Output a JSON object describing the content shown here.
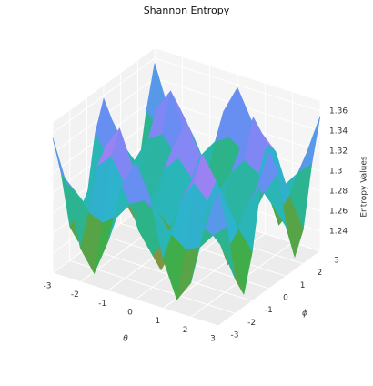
{
  "chart_data": {
    "type": "surface",
    "title": "Shannon Entropy",
    "xlabel": "θ",
    "ylabel": "ϕ",
    "zlabel": "Entropy Values",
    "x": [
      -3,
      -2.5,
      -2,
      -1.5,
      -1,
      -0.5,
      0,
      0.5,
      1,
      1.5,
      2,
      2.5,
      3
    ],
    "y": [
      -3,
      -2.5,
      -2,
      -1.5,
      -1,
      -0.5,
      0,
      0.5,
      1,
      1.5,
      2,
      2.5,
      3
    ],
    "z": [
      [
        1.355,
        1.313,
        1.254,
        1.233,
        1.269,
        1.329,
        1.357,
        1.329,
        1.269,
        1.233,
        1.254,
        1.313,
        1.355
      ],
      [
        1.313,
        1.3,
        1.283,
        1.277,
        1.287,
        1.305,
        1.313,
        1.305,
        1.287,
        1.277,
        1.283,
        1.3,
        1.313
      ],
      [
        1.254,
        1.283,
        1.323,
        1.337,
        1.313,
        1.272,
        1.252,
        1.272,
        1.313,
        1.337,
        1.323,
        1.283,
        1.254
      ],
      [
        1.233,
        1.277,
        1.337,
        1.359,
        1.322,
        1.26,
        1.231,
        1.26,
        1.322,
        1.359,
        1.337,
        1.277,
        1.233
      ],
      [
        1.269,
        1.287,
        1.313,
        1.322,
        1.306,
        1.28,
        1.268,
        1.28,
        1.306,
        1.322,
        1.313,
        1.287,
        1.269
      ],
      [
        1.329,
        1.305,
        1.272,
        1.26,
        1.28,
        1.314,
        1.33,
        1.314,
        1.28,
        1.26,
        1.272,
        1.305,
        1.329
      ],
      [
        1.357,
        1.313,
        1.252,
        1.231,
        1.268,
        1.33,
        1.36,
        1.33,
        1.268,
        1.231,
        1.252,
        1.313,
        1.357
      ],
      [
        1.329,
        1.305,
        1.272,
        1.26,
        1.28,
        1.314,
        1.33,
        1.314,
        1.28,
        1.26,
        1.272,
        1.305,
        1.329
      ],
      [
        1.269,
        1.287,
        1.313,
        1.322,
        1.306,
        1.28,
        1.268,
        1.28,
        1.306,
        1.322,
        1.313,
        1.287,
        1.269
      ],
      [
        1.233,
        1.277,
        1.337,
        1.359,
        1.322,
        1.26,
        1.231,
        1.26,
        1.322,
        1.359,
        1.337,
        1.277,
        1.233
      ],
      [
        1.254,
        1.283,
        1.323,
        1.337,
        1.313,
        1.272,
        1.252,
        1.272,
        1.313,
        1.337,
        1.323,
        1.283,
        1.254
      ],
      [
        1.313,
        1.3,
        1.283,
        1.277,
        1.287,
        1.305,
        1.313,
        1.305,
        1.287,
        1.277,
        1.283,
        1.3,
        1.313
      ],
      [
        1.355,
        1.313,
        1.254,
        1.233,
        1.269,
        1.329,
        1.357,
        1.329,
        1.269,
        1.233,
        1.254,
        1.313,
        1.355
      ]
    ],
    "xlim": [
      -3,
      3
    ],
    "ylim": [
      -3,
      3
    ],
    "zlim": [
      1.22,
      1.37
    ],
    "xticks": [
      -3,
      -2,
      -1,
      0,
      1,
      2,
      3
    ],
    "yticks": [
      -3,
      -2,
      -1,
      0,
      1,
      2,
      3
    ],
    "zticks": [
      1.24,
      1.26,
      1.28,
      1.3,
      1.32,
      1.34,
      1.36
    ],
    "grid": true
  }
}
